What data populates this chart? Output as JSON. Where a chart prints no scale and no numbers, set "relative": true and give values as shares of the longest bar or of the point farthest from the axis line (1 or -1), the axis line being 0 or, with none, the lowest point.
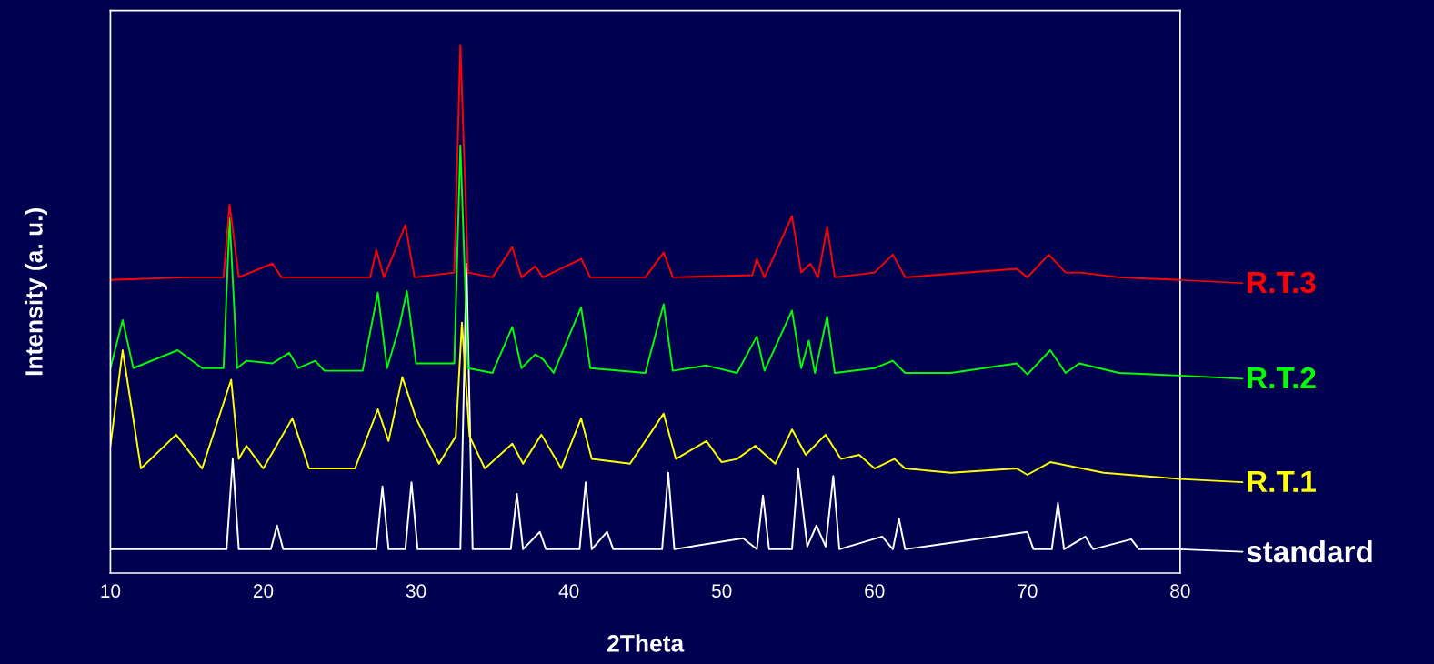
{
  "chart_data": {
    "type": "line",
    "relative": true,
    "xlabel": "2Theta",
    "ylabel": "Intensity (a. u.)",
    "xlim": [
      10,
      80
    ],
    "xticks": [
      10,
      20,
      30,
      40,
      50,
      60,
      70,
      80
    ],
    "grid": false,
    "legend": "right",
    "series": [
      {
        "name": "standard",
        "color": "#ffffff",
        "x": [
          10,
          17.6,
          18.0,
          18.4,
          20.5,
          20.9,
          21.3,
          27.4,
          27.8,
          28.2,
          29.3,
          29.7,
          30.1,
          32.9,
          33.3,
          33.7,
          36.2,
          36.6,
          37.0,
          38.1,
          38.5,
          40.7,
          41.1,
          41.5,
          42.5,
          42.9,
          46.1,
          46.5,
          46.9,
          51.4,
          52.3,
          52.7,
          53.1,
          54.6,
          55.0,
          55.6,
          56.2,
          56.8,
          57.3,
          57.7,
          60.5,
          61.2,
          61.6,
          62.0,
          70.0,
          70.4,
          71.6,
          72.0,
          72.4,
          73.8,
          74.3,
          76.8,
          77.3,
          80
        ],
        "values": [
          0.045,
          0.045,
          0.216,
          0.045,
          0.045,
          0.09,
          0.045,
          0.045,
          0.164,
          0.045,
          0.045,
          0.172,
          0.045,
          0.045,
          0.586,
          0.045,
          0.045,
          0.15,
          0.045,
          0.078,
          0.045,
          0.045,
          0.172,
          0.045,
          0.078,
          0.045,
          0.045,
          0.19,
          0.045,
          0.066,
          0.045,
          0.147,
          0.045,
          0.045,
          0.198,
          0.05,
          0.09,
          0.05,
          0.184,
          0.045,
          0.069,
          0.045,
          0.103,
          0.045,
          0.078,
          0.045,
          0.045,
          0.133,
          0.045,
          0.069,
          0.045,
          0.064,
          0.045,
          0.045
        ]
      },
      {
        "name": "R.T.1",
        "color": "#ffff00",
        "x": [
          10,
          10.8,
          12,
          14.3,
          16,
          17.9,
          18.4,
          18.9,
          20,
          21.9,
          23,
          26,
          27.5,
          28.2,
          29.1,
          30,
          31.5,
          32.6,
          33.0,
          33.5,
          34.5,
          36.3,
          37,
          38.2,
          39.5,
          40.8,
          41.5,
          44,
          46.2,
          47,
          49,
          50,
          51,
          52.2,
          53.5,
          54.6,
          55.5,
          56.8,
          57.8,
          59,
          60,
          61.3,
          62,
          65,
          69.3,
          70,
          71.5,
          75,
          80
        ],
        "values": [
          0.241,
          0.422,
          0.198,
          0.262,
          0.198,
          0.366,
          0.216,
          0.241,
          0.198,
          0.293,
          0.198,
          0.198,
          0.31,
          0.25,
          0.371,
          0.293,
          0.207,
          0.259,
          0.474,
          0.259,
          0.198,
          0.245,
          0.207,
          0.262,
          0.198,
          0.293,
          0.216,
          0.207,
          0.302,
          0.216,
          0.25,
          0.21,
          0.216,
          0.241,
          0.207,
          0.272,
          0.224,
          0.262,
          0.216,
          0.224,
          0.198,
          0.216,
          0.198,
          0.19,
          0.198,
          0.186,
          0.21,
          0.19,
          0.178
        ]
      },
      {
        "name": "R.T.2",
        "color": "#00ff00",
        "x": [
          10,
          10.8,
          11.5,
          14.4,
          16,
          17.4,
          17.8,
          18.3,
          18.9,
          20.6,
          21.7,
          22.3,
          23.4,
          24,
          26.5,
          27.5,
          28.1,
          28.9,
          29.4,
          30,
          32.5,
          32.9,
          33.4,
          35,
          36.3,
          36.9,
          37.8,
          38.3,
          39,
          40.8,
          41.4,
          45,
          46.2,
          46.8,
          49,
          51,
          52.3,
          52.8,
          54.6,
          55.2,
          55.7,
          56.1,
          56.9,
          57.4,
          60,
          61.2,
          62,
          65,
          69.3,
          70,
          71.5,
          72.5,
          73.4,
          76,
          80
        ],
        "values": [
          0.388,
          0.479,
          0.388,
          0.422,
          0.388,
          0.388,
          0.672,
          0.388,
          0.402,
          0.397,
          0.417,
          0.388,
          0.402,
          0.383,
          0.383,
          0.531,
          0.388,
          0.466,
          0.534,
          0.397,
          0.397,
          0.81,
          0.388,
          0.379,
          0.466,
          0.388,
          0.414,
          0.405,
          0.379,
          0.503,
          0.388,
          0.379,
          0.509,
          0.383,
          0.393,
          0.379,
          0.448,
          0.383,
          0.497,
          0.388,
          0.44,
          0.379,
          0.486,
          0.379,
          0.388,
          0.402,
          0.379,
          0.379,
          0.397,
          0.376,
          0.422,
          0.379,
          0.397,
          0.379,
          0.374
        ]
      },
      {
        "name": "R.T.3",
        "color": "#ff0000",
        "x": [
          10,
          15,
          17.4,
          17.8,
          18.4,
          20.6,
          21.2,
          27,
          27.4,
          27.9,
          29.3,
          29.9,
          32.5,
          32.9,
          33.4,
          35,
          36.3,
          36.9,
          37.8,
          38.3,
          40.8,
          41.4,
          45,
          46.2,
          46.8,
          52,
          52.3,
          52.8,
          54.6,
          55.2,
          55.8,
          56.3,
          56.9,
          57.4,
          60,
          61.2,
          62,
          69.3,
          70,
          71.4,
          72.5,
          73.5,
          76,
          80
        ],
        "values": [
          0.555,
          0.56,
          0.56,
          0.698,
          0.56,
          0.586,
          0.56,
          0.56,
          0.612,
          0.56,
          0.659,
          0.56,
          0.569,
          1.0,
          0.569,
          0.56,
          0.617,
          0.56,
          0.581,
          0.56,
          0.595,
          0.56,
          0.56,
          0.607,
          0.56,
          0.564,
          0.595,
          0.56,
          0.676,
          0.569,
          0.586,
          0.56,
          0.655,
          0.56,
          0.569,
          0.603,
          0.56,
          0.576,
          0.56,
          0.603,
          0.569,
          0.569,
          0.56,
          0.555
        ]
      }
    ]
  }
}
